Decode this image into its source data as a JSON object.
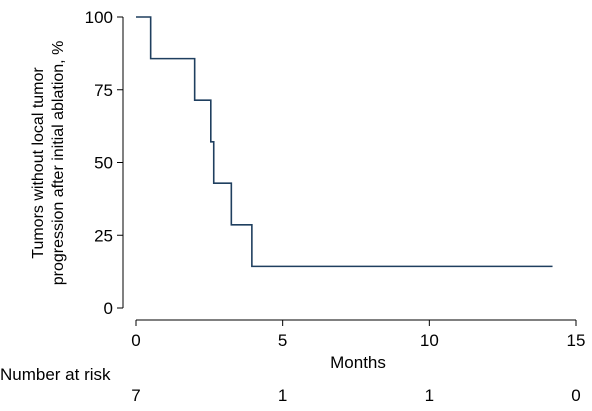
{
  "chart_data": {
    "type": "line",
    "subtype": "kaplan-meier step",
    "title": "",
    "xlabel": "Months",
    "ylabel_lines": [
      "Tumors without local tumor",
      "progression after initial ablation, %"
    ],
    "xlim": [
      0,
      15
    ],
    "ylim": [
      0,
      100
    ],
    "x_ticks": [
      0,
      5,
      10,
      15
    ],
    "y_ticks": [
      0,
      25,
      50,
      75,
      100
    ],
    "grid": false,
    "legend": "none",
    "line_color": "#1f3f5f",
    "series": [
      {
        "x": [
          0,
          0.5,
          2.0,
          2.55,
          2.65,
          3.25,
          3.95,
          14.2
        ],
        "y": [
          100,
          85.7,
          71.4,
          57.1,
          42.9,
          28.6,
          14.3,
          14.3
        ]
      }
    ],
    "risk_table": {
      "label": "Number at risk",
      "at": [
        0,
        5,
        10,
        15
      ],
      "counts": [
        "7",
        "1",
        "1",
        "0"
      ]
    }
  }
}
